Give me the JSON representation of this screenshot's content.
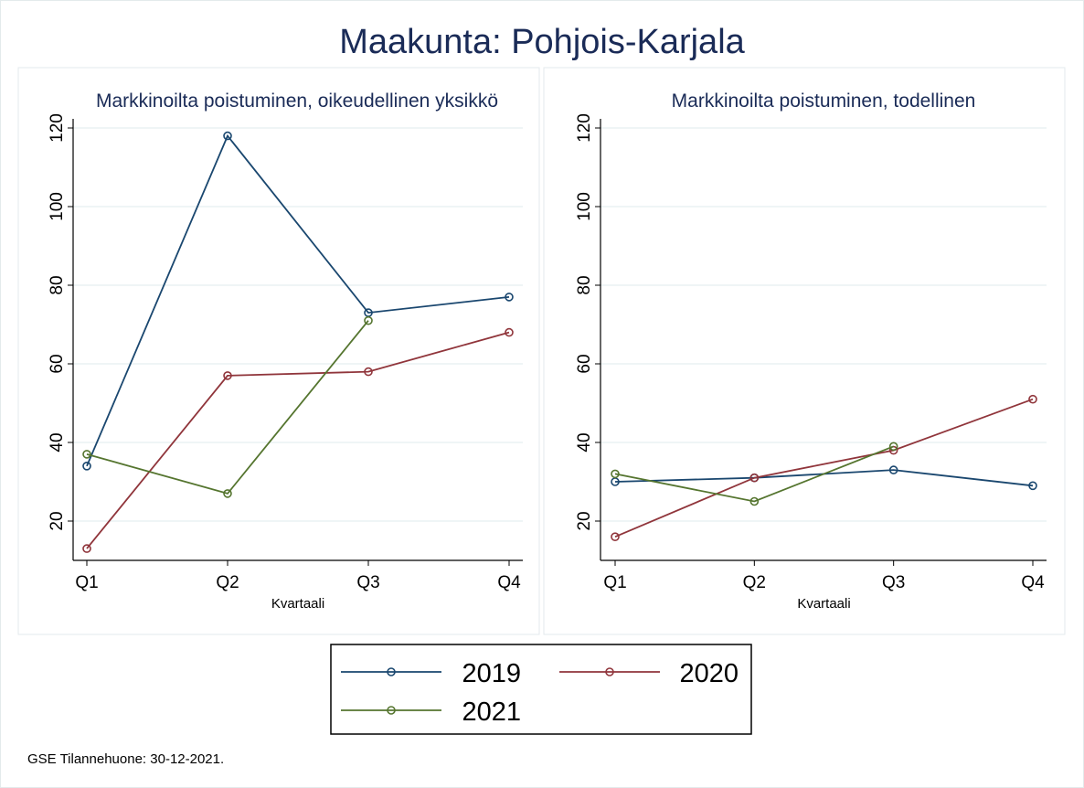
{
  "chart_data": [
    {
      "type": "line",
      "title": "Markkinoilta poistuminen, oikeudellinen yksikkö",
      "xlabel": "Kvartaali",
      "ylabel": "",
      "categories": [
        "Q1",
        "Q2",
        "Q3",
        "Q4"
      ],
      "yticks": [
        20,
        40,
        60,
        80,
        100,
        120
      ],
      "ylim": [
        10,
        120
      ],
      "grid": true,
      "series": [
        {
          "name": "2019",
          "values": [
            34,
            118,
            73,
            77
          ]
        },
        {
          "name": "2020",
          "values": [
            13,
            57,
            58,
            68
          ]
        },
        {
          "name": "2021",
          "values": [
            37,
            27,
            71,
            null
          ]
        }
      ]
    },
    {
      "type": "line",
      "title": "Markkinoilta poistuminen, todellinen",
      "xlabel": "Kvartaali",
      "ylabel": "",
      "categories": [
        "Q1",
        "Q2",
        "Q3",
        "Q4"
      ],
      "yticks": [
        20,
        40,
        60,
        80,
        100,
        120
      ],
      "ylim": [
        10,
        120
      ],
      "grid": true,
      "series": [
        {
          "name": "2019",
          "values": [
            30,
            31,
            33,
            29
          ]
        },
        {
          "name": "2020",
          "values": [
            16,
            31,
            38,
            51
          ]
        },
        {
          "name": "2021",
          "values": [
            32,
            25,
            39,
            null
          ]
        }
      ]
    }
  ],
  "main_title": "Maakunta: Pohjois-Karjala",
  "legend": {
    "placement": "bottom",
    "entries": [
      "2019",
      "2020",
      "2021"
    ]
  },
  "colors": {
    "2019": "#1a476f",
    "2020": "#90353b",
    "2021": "#55752f",
    "title": "#1a2b57"
  },
  "footnote": "GSE Tilannehuone: 30-12-2021."
}
